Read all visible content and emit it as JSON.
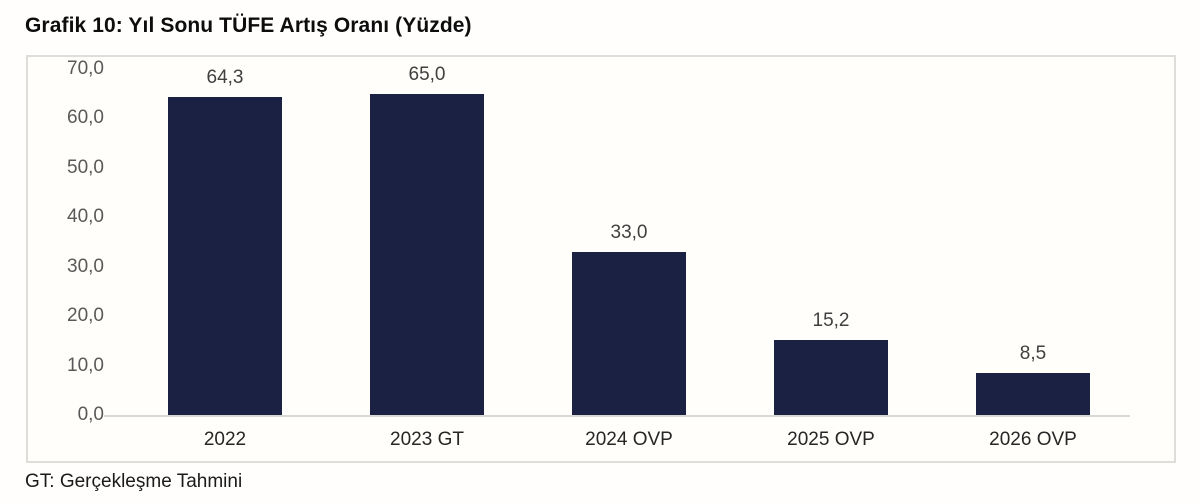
{
  "page": {
    "title": "Grafik 10: Yıl Sonu TÜFE Artış Oranı (Yüzde)",
    "footnote": "GT: Gerçekleşme Tahmini"
  },
  "colors": {
    "bar": "#1b2143",
    "axis_text": "#595959",
    "data_label": "#404040",
    "x_label": "#262626",
    "frame_border": "#deddd9",
    "axis_line": "#d9d8d4",
    "title_text": "#0d0d0d"
  },
  "chart_data": {
    "type": "bar",
    "title": "Grafik 10: Yıl Sonu TÜFE Artış Oranı (Yüzde)",
    "categories": [
      "2022",
      "2023 GT",
      "2024 OVP",
      "2025 OVP",
      "2026 OVP"
    ],
    "values": [
      64.3,
      65.0,
      33.0,
      15.2,
      8.5
    ],
    "value_labels": [
      "64,3",
      "65,0",
      "33,0",
      "15,2",
      "8,5"
    ],
    "xlabel": "",
    "ylabel": "",
    "ylim": [
      0,
      70
    ],
    "ytick_step": 10,
    "ytick_labels": [
      "0,0",
      "10,0",
      "20,0",
      "30,0",
      "40,0",
      "50,0",
      "60,0",
      "70,0"
    ],
    "grid": false,
    "legend_position": "none",
    "footnote": "GT: Gerçekleşme Tahmini"
  }
}
